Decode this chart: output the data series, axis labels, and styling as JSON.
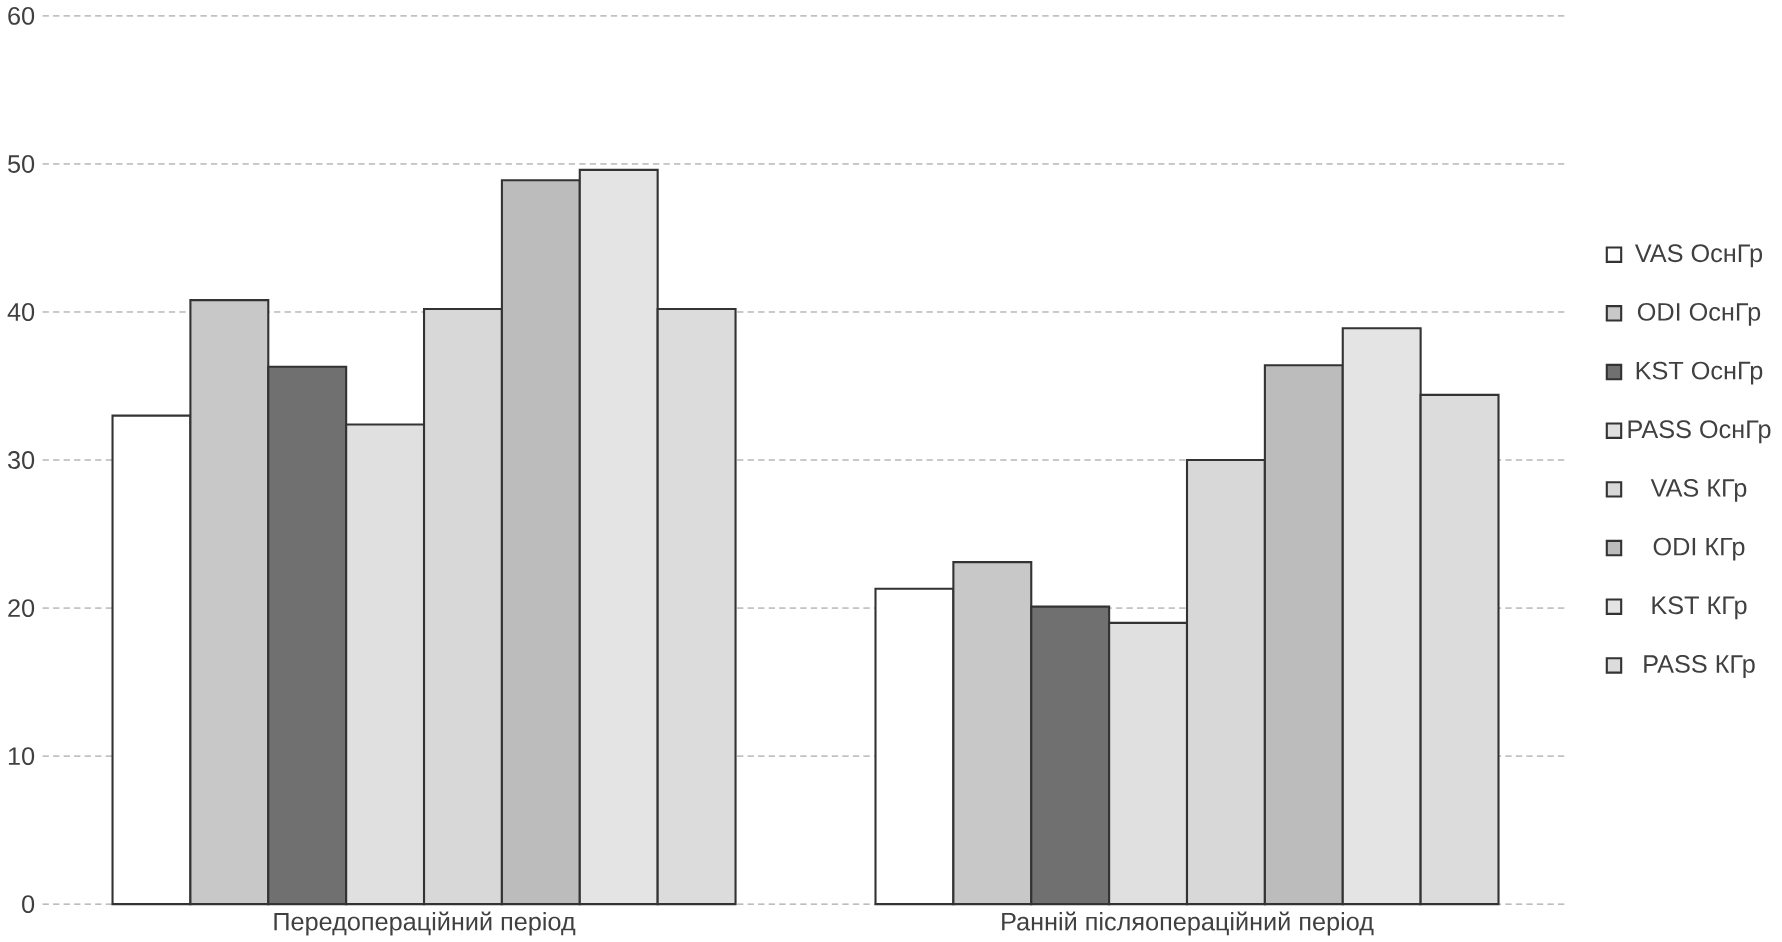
{
  "chart_data": {
    "type": "bar",
    "categories": [
      "Передопераційний  період",
      "Ранній післяопераційний  період"
    ],
    "series": [
      {
        "name": "VAS ОснГр",
        "color": "#ffffff",
        "values": [
          33.0,
          21.3
        ]
      },
      {
        "name": "ODI ОснГр",
        "color": "#c8c8c8",
        "values": [
          40.8,
          23.1
        ]
      },
      {
        "name": "KST ОснГр",
        "color": "#707070",
        "values": [
          36.3,
          20.1
        ]
      },
      {
        "name": "PASS ОснГр",
        "color": "#e0e0e0",
        "values": [
          32.4,
          19.0
        ]
      },
      {
        "name": "VAS КГр",
        "color": "#d8d8d8",
        "values": [
          40.2,
          30.0
        ]
      },
      {
        "name": "ODI КГр",
        "color": "#bcbcbc",
        "values": [
          48.9,
          36.4
        ]
      },
      {
        "name": "KST КГр",
        "color": "#e4e4e4",
        "values": [
          49.6,
          38.9
        ]
      },
      {
        "name": "PASS КГр",
        "color": "#dcdcdc",
        "values": [
          40.2,
          34.4
        ]
      }
    ],
    "ylim": [
      0,
      60
    ],
    "yticks": [
      0,
      10,
      20,
      30,
      40,
      50,
      60
    ],
    "grid": "y",
    "legend": "right"
  }
}
